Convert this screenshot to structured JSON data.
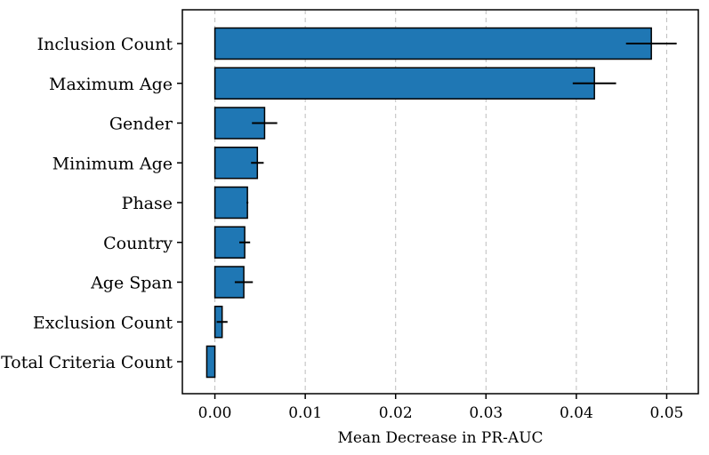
{
  "chart_data": {
    "type": "bar",
    "orientation": "horizontal",
    "categories": [
      "Inclusion Count",
      "Maximum Age",
      "Gender",
      "Minimum Age",
      "Phase",
      "Country",
      "Age Span",
      "Exclusion Count",
      "Total Criteria Count"
    ],
    "values": [
      0.0483,
      0.042,
      0.0055,
      0.0047,
      0.0036,
      0.0033,
      0.0032,
      0.0008,
      -0.0009
    ],
    "errors": [
      0.0028,
      0.0024,
      0.0014,
      0.0007,
      0.0001,
      0.0006,
      0.001,
      0.0006,
      0.0
    ],
    "xlabel": "Mean Decrease in PR-AUC",
    "ylabel": "",
    "xlim": [
      -0.0036,
      0.0535
    ],
    "xticks": [
      "0.00",
      "0.01",
      "0.02",
      "0.03",
      "0.04",
      "0.05"
    ],
    "xtick_values": [
      0,
      0.01,
      0.02,
      0.03,
      0.04,
      0.05
    ],
    "grid": "x-dashed",
    "bar_color": "#1f77b4"
  }
}
